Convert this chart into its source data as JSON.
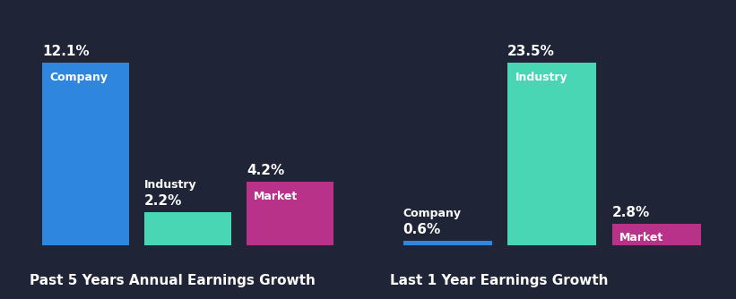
{
  "background_color": "#1f2437",
  "text_color": "#ffffff",
  "chart1": {
    "title": "Past 5 Years Annual Earnings Growth",
    "bars": [
      {
        "label": "Company",
        "value": 12.1,
        "color": "#2e86de",
        "label_inside": true
      },
      {
        "label": "Industry",
        "value": 2.2,
        "color": "#48d6b4",
        "label_inside": false
      },
      {
        "label": "Market",
        "value": 4.2,
        "color": "#b8328a",
        "label_inside": true
      }
    ]
  },
  "chart2": {
    "title": "Last 1 Year Earnings Growth",
    "bars": [
      {
        "label": "Company",
        "value": 0.6,
        "color": "#2e86de",
        "label_inside": false
      },
      {
        "label": "Industry",
        "value": 23.5,
        "color": "#48d6b4",
        "label_inside": true
      },
      {
        "label": "Market",
        "value": 2.8,
        "color": "#b8328a",
        "label_inside": true
      }
    ]
  },
  "value_fontsize": 11,
  "label_fontsize": 9,
  "title_fontsize": 11,
  "bar_width": 0.85
}
